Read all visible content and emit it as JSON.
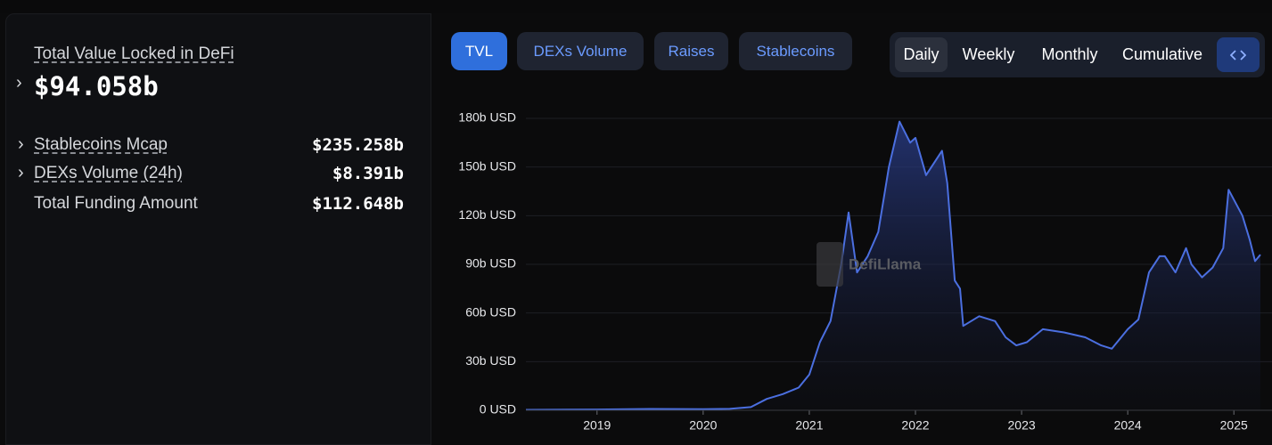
{
  "summary": {
    "title": "Total Value Locked in DeFi",
    "value": "$94.058b",
    "rows": [
      {
        "label": "Stablecoins Mcap",
        "value": "$235.258b"
      },
      {
        "label": "DEXs Volume (24h)",
        "value": "$8.391b"
      },
      {
        "label": "Total Funding Amount",
        "value": "$112.648b"
      }
    ]
  },
  "tabs": [
    "TVL",
    "DEXs Volume",
    "Raises",
    "Stablecoins"
  ],
  "periods": [
    "Daily",
    "Weekly",
    "Monthly",
    "Cumulative"
  ],
  "chart_data": {
    "type": "area",
    "watermark": "DefiLlama",
    "color": "#4b6fe0",
    "x": [
      2018.33,
      2019,
      2019.5,
      2020,
      2020.25,
      2020.45,
      2020.6,
      2020.75,
      2020.9,
      2021.0,
      2021.1,
      2021.2,
      2021.3,
      2021.37,
      2021.45,
      2021.55,
      2021.65,
      2021.75,
      2021.85,
      2021.95,
      2022.0,
      2022.1,
      2022.25,
      2022.3,
      2022.37,
      2022.42,
      2022.45,
      2022.6,
      2022.75,
      2022.85,
      2022.95,
      2023.05,
      2023.2,
      2023.4,
      2023.6,
      2023.75,
      2023.85,
      2024.0,
      2024.1,
      2024.2,
      2024.3,
      2024.35,
      2024.45,
      2024.55,
      2024.6,
      2024.7,
      2024.8,
      2024.9,
      2024.95,
      2025.08,
      2025.15,
      2025.2,
      2025.25
    ],
    "values": [
      0.3,
      0.5,
      0.8,
      0.7,
      0.9,
      2,
      7,
      10,
      14,
      22,
      42,
      55,
      90,
      122,
      85,
      95,
      110,
      150,
      178,
      165,
      168,
      145,
      160,
      140,
      80,
      75,
      52,
      58,
      55,
      45,
      40,
      42,
      50,
      48,
      45,
      40,
      38,
      50,
      56,
      85,
      95,
      95,
      85,
      100,
      90,
      82,
      88,
      100,
      136,
      120,
      105,
      92,
      96
    ],
    "xlim": [
      2018.33,
      2025.25
    ],
    "xticks": [
      2019,
      2020,
      2021,
      2022,
      2023,
      2024,
      2025
    ],
    "ylim": [
      0,
      180
    ],
    "yticks": [
      {
        "value": 0,
        "label": "0 USD"
      },
      {
        "value": 30,
        "label": "30b USD"
      },
      {
        "value": 60,
        "label": "60b USD"
      },
      {
        "value": 90,
        "label": "90b USD"
      },
      {
        "value": 120,
        "label": "120b USD"
      },
      {
        "value": 150,
        "label": "150b USD"
      },
      {
        "value": 180,
        "label": "180b USD"
      }
    ],
    "grid": true
  }
}
